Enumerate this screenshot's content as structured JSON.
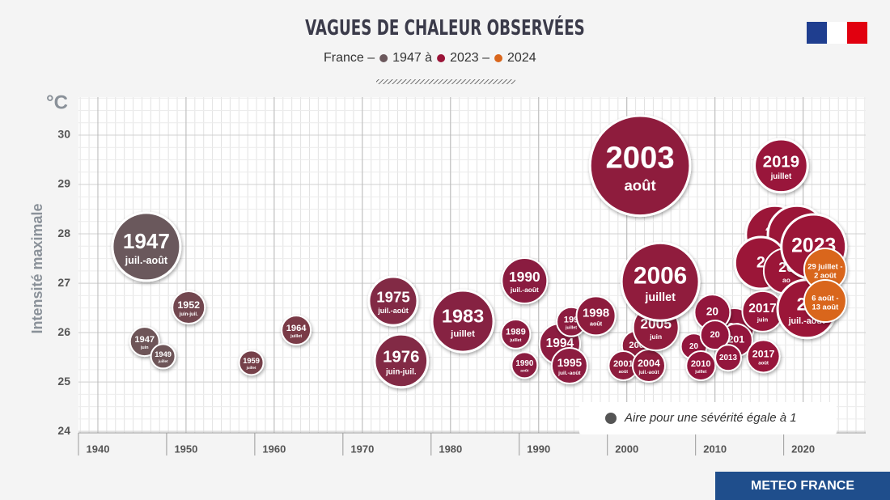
{
  "chart_data": {
    "type": "bubble",
    "title": "VAGUES DE CHALEUR OBSERVÉES",
    "subtitle": [
      "France –",
      "1947 à",
      "2023 –",
      "2024"
    ],
    "subtitle_colors": [
      "#6b585c",
      "#9b1438",
      "#d9661c"
    ],
    "y_label": "Intensité maximale",
    "y_unit": "°C",
    "xlim": [
      1937.8,
      2027.1
    ],
    "xticks": [
      1940,
      1950,
      1960,
      1970,
      1980,
      1990,
      2000,
      2010,
      2020
    ],
    "ylim": [
      23.97,
      30.77
    ],
    "yticks": [
      24,
      25,
      26,
      27,
      28,
      29,
      30
    ],
    "grid": true,
    "legend": {
      "label": "Aire pour une sévérité égale à 1",
      "size": 1,
      "color": "#555555",
      "position": "bottom-right"
    },
    "points": [
      {
        "label": "20",
        "x": 2016.8,
        "y": 27.98,
        "size": 26.4,
        "color": "#9b1438"
      },
      {
        "label": "20",
        "x": 2019.3,
        "y": 27.98,
        "size": 26.4,
        "color": "#9b1438"
      },
      {
        "label": "2",
        "x": 2015.2,
        "y": 27.41,
        "size": 20.9,
        "color": "#9b1438"
      },
      {
        "label": "20",
        "x": 2018.1,
        "y": 27.25,
        "size": 16,
        "sublabel": "ao",
        "color": "#9b1438"
      },
      {
        "label": "20",
        "x": 2012.2,
        "y": 26.1,
        "size": 11.8,
        "color": "#93173c"
      },
      {
        "label": "20",
        "x": 2009.7,
        "y": 26.41,
        "size": 9.9,
        "color": "#93173c"
      },
      {
        "label": "20",
        "x": 2007.6,
        "y": 25.72,
        "size": 5.2,
        "color": "#93173c"
      },
      {
        "label": "201",
        "x": 2012.4,
        "y": 25.85,
        "size": 8.2,
        "color": "#93173c"
      },
      {
        "label": "20",
        "x": 2010.0,
        "y": 25.95,
        "size": 6.6,
        "color": "#93173c"
      },
      {
        "label": "1947",
        "sublabel": "juil.-août",
        "x": 1945.5,
        "y": 27.74,
        "size": 36,
        "color": "#6b585c"
      },
      {
        "label": "1947",
        "sublabel": "juin",
        "x": 1945.3,
        "y": 25.82,
        "size": 6.6,
        "color": "#6e5559"
      },
      {
        "label": "1949",
        "sublabel": "juillet",
        "x": 1947.4,
        "y": 25.52,
        "size": 4.6,
        "color": "#6e5559"
      },
      {
        "label": "1952",
        "sublabel": "juin-juil.",
        "x": 1950.3,
        "y": 26.51,
        "size": 8.2,
        "color": "#72464f"
      },
      {
        "label": "1959",
        "sublabel": "juillet",
        "x": 1957.4,
        "y": 25.39,
        "size": 4.6,
        "color": "#754049"
      },
      {
        "label": "1964",
        "sublabel": "juillet",
        "x": 1962.5,
        "y": 26.05,
        "size": 6.6,
        "color": "#7a3a47"
      },
      {
        "label": "1975",
        "sublabel": "juil.-août",
        "x": 1973.5,
        "y": 26.64,
        "size": 18.4,
        "color": "#822b44"
      },
      {
        "label": "1976",
        "sublabel": "juin-juil.",
        "x": 1974.4,
        "y": 25.43,
        "size": 22,
        "color": "#822b44"
      },
      {
        "label": "1983",
        "sublabel": "juillet",
        "x": 1981.4,
        "y": 26.23,
        "size": 29.5,
        "color": "#862342"
      },
      {
        "label": "1990",
        "sublabel": "juil.-août",
        "x": 1988.4,
        "y": 27.05,
        "size": 16,
        "color": "#8a1f40"
      },
      {
        "label": "1989",
        "sublabel": "juillet",
        "x": 1987.4,
        "y": 25.97,
        "size": 6.6,
        "color": "#8a1f40"
      },
      {
        "label": "1990",
        "sublabel": "août",
        "x": 1988.4,
        "y": 25.34,
        "size": 5.2,
        "color": "#8a1f40"
      },
      {
        "label": "1994",
        "x": 1992.4,
        "y": 25.77,
        "size": 12.8,
        "color": "#8c1d3f"
      },
      {
        "label": "199",
        "sublabel": "juillet",
        "x": 1993.7,
        "y": 26.22,
        "size": 6.6,
        "color": "#8c1d3f"
      },
      {
        "label": "1995",
        "sublabel": "juil.-août",
        "x": 1993.5,
        "y": 25.33,
        "size": 9.9,
        "color": "#8c1d3f"
      },
      {
        "label": "1998",
        "sublabel": "août",
        "x": 1996.5,
        "y": 26.34,
        "size": 11.8,
        "color": "#8d1b3e"
      },
      {
        "label": "2003",
        "sublabel": "août",
        "x": 2001.5,
        "y": 29.38,
        "size": 78,
        "color": "#8e1a3d"
      },
      {
        "label": "200",
        "x": 2001.1,
        "y": 25.74,
        "size": 6.6,
        "color": "#8e1a3d"
      },
      {
        "label": "2001",
        "sublabel": "août",
        "x": 1999.6,
        "y": 25.33,
        "size": 6.6,
        "color": "#8e1a3d"
      },
      {
        "label": "2004",
        "sublabel": "juil.-août",
        "x": 2002.5,
        "y": 25.33,
        "size": 8.2,
        "color": "#8e1a3d"
      },
      {
        "label": "2005",
        "sublabel": "juin",
        "x": 2003.3,
        "y": 26.1,
        "size": 16,
        "color": "#901a3d"
      },
      {
        "label": "2006",
        "sublabel": "juillet",
        "x": 2003.8,
        "y": 27.03,
        "size": 47,
        "color": "#901a3d"
      },
      {
        "label": "2010",
        "sublabel": "juillet",
        "x": 2008.4,
        "y": 25.33,
        "size": 6.6,
        "color": "#93173c"
      },
      {
        "label": "2013",
        "x": 2011.5,
        "y": 25.49,
        "size": 5.2,
        "color": "#93173c"
      },
      {
        "label": "2017",
        "sublabel": "juin",
        "x": 2015.4,
        "y": 26.43,
        "size": 12.8,
        "color": "#97163a"
      },
      {
        "label": "2017",
        "sublabel": "août",
        "x": 2015.5,
        "y": 25.52,
        "size": 8.2,
        "color": "#97163a"
      },
      {
        "label": "2019",
        "sublabel": "juillet",
        "x": 2017.5,
        "y": 29.38,
        "size": 22,
        "color": "#99153a"
      },
      {
        "label": "2023",
        "x": 2021.2,
        "y": 27.74,
        "size": 32.6,
        "color": "#9b1438"
      },
      {
        "label": "20",
        "sublabel": "juil.-août",
        "x": 2020.4,
        "y": 26.48,
        "size": 26.4,
        "color": "#9b1438"
      },
      {
        "label": "29 juillet -",
        "sublabel": "2 août",
        "x": 2022.5,
        "y": 27.28,
        "size": 13.8,
        "color": "#d9661c"
      },
      {
        "label": "6 août -",
        "sublabel": "13 août",
        "x": 2022.5,
        "y": 26.64,
        "size": 13.8,
        "color": "#d9661c"
      }
    ]
  },
  "footer": "METEO FRANCE"
}
